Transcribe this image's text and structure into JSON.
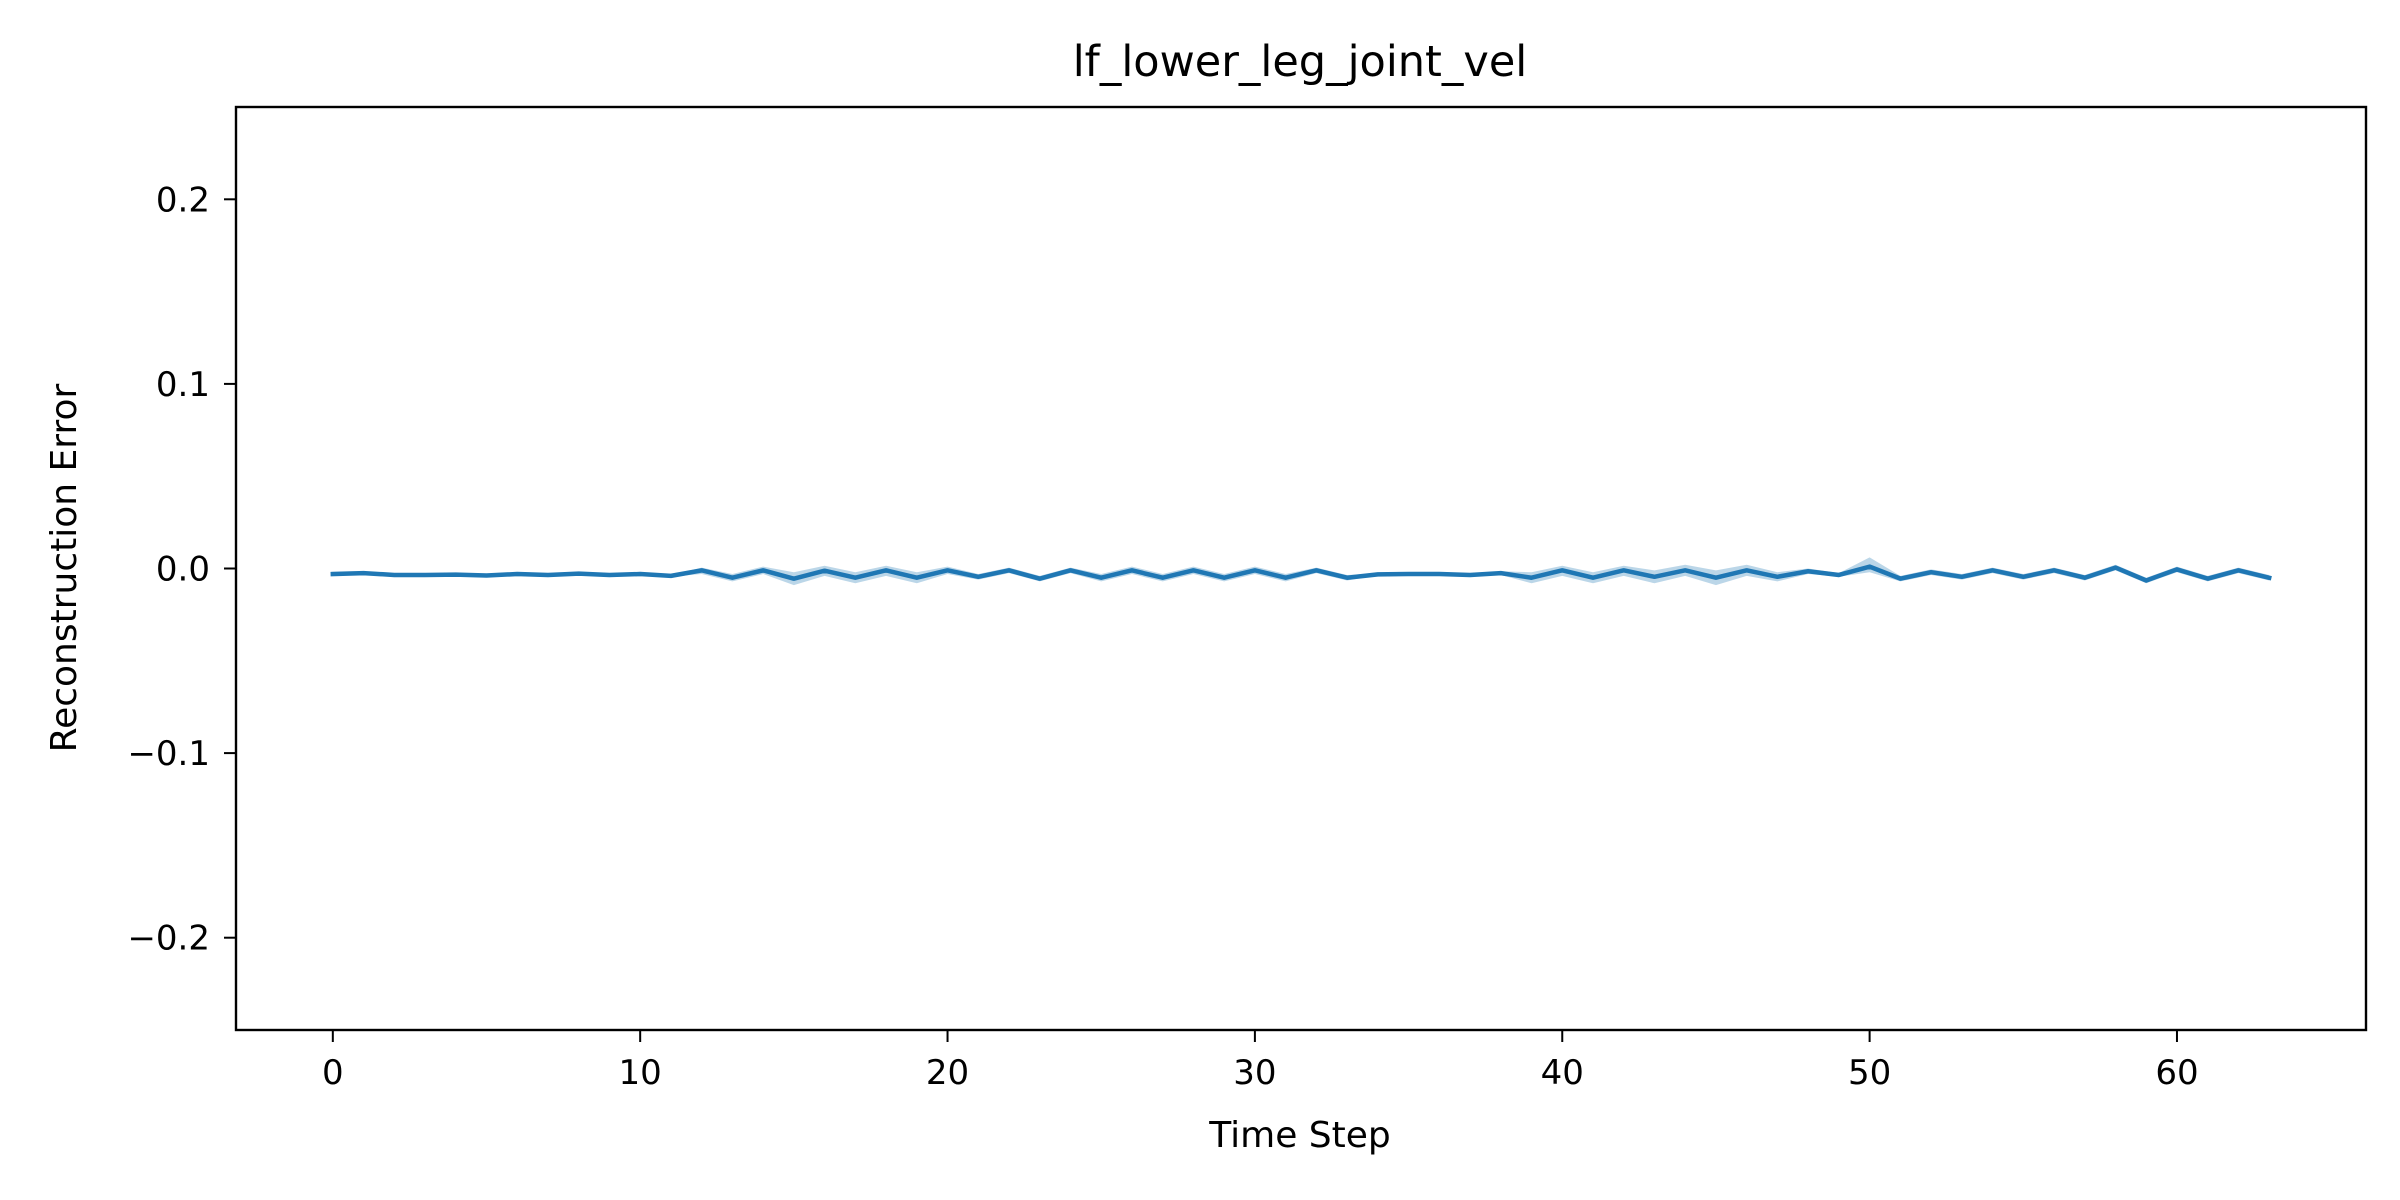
{
  "chart_data": {
    "type": "line",
    "title": "lf_lower_leg_joint_vel",
    "xlabel": "Time Step",
    "ylabel": "Reconstruction Error",
    "xlim": [
      -3.15,
      66.15
    ],
    "ylim": [
      -0.25,
      0.25
    ],
    "xticks": [
      0,
      10,
      20,
      30,
      40,
      50,
      60
    ],
    "xtick_labels": [
      "0",
      "10",
      "20",
      "30",
      "40",
      "50",
      "60"
    ],
    "yticks": [
      0.2,
      0.1,
      0.0,
      -0.1,
      -0.2
    ],
    "ytick_labels": [
      "0.2",
      "0.1",
      "0.0",
      "−0.1",
      "−0.2"
    ],
    "grid": false,
    "legend": "none",
    "series": [
      {
        "color": "#1f77b4",
        "band_color": "#1f77b4",
        "x": [
          0,
          1,
          2,
          3,
          4,
          5,
          6,
          7,
          8,
          9,
          10,
          11,
          12,
          13,
          14,
          15,
          16,
          17,
          18,
          19,
          20,
          21,
          22,
          23,
          24,
          25,
          26,
          27,
          28,
          29,
          30,
          31,
          32,
          33,
          34,
          35,
          36,
          37,
          38,
          39,
          40,
          41,
          42,
          43,
          44,
          45,
          46,
          47,
          48,
          49,
          50,
          51,
          52,
          53,
          54,
          55,
          56,
          57,
          58,
          59,
          60,
          61,
          62,
          63
        ],
        "y": [
          -0.003,
          -0.0025,
          -0.0035,
          -0.0035,
          -0.0033,
          -0.0038,
          -0.003,
          -0.0035,
          -0.0028,
          -0.0035,
          -0.003,
          -0.004,
          -0.001,
          -0.005,
          -0.001,
          -0.0055,
          -0.0012,
          -0.005,
          -0.001,
          -0.005,
          -0.001,
          -0.0045,
          -0.001,
          -0.0055,
          -0.001,
          -0.005,
          -0.001,
          -0.005,
          -0.001,
          -0.005,
          -0.001,
          -0.005,
          -0.001,
          -0.005,
          -0.0032,
          -0.003,
          -0.003,
          -0.0035,
          -0.0025,
          -0.005,
          -0.001,
          -0.005,
          -0.001,
          -0.0045,
          -0.001,
          -0.005,
          -0.001,
          -0.0045,
          -0.0015,
          -0.0035,
          0.001,
          -0.0055,
          -0.002,
          -0.0045,
          -0.001,
          -0.0045,
          -0.001,
          -0.005,
          0.0005,
          -0.0065,
          -0.0005,
          -0.0055,
          -0.001,
          -0.005
        ],
        "y_lower": [
          -0.0035,
          -0.003,
          -0.004,
          -0.004,
          -0.0038,
          -0.0043,
          -0.0035,
          -0.004,
          -0.0033,
          -0.004,
          -0.0035,
          -0.0045,
          -0.003,
          -0.007,
          -0.003,
          -0.009,
          -0.004,
          -0.008,
          -0.004,
          -0.008,
          -0.003,
          -0.006,
          -0.0025,
          -0.007,
          -0.0025,
          -0.007,
          -0.003,
          -0.007,
          -0.003,
          -0.007,
          -0.003,
          -0.007,
          -0.0025,
          -0.0065,
          -0.0037,
          -0.0035,
          -0.0035,
          -0.004,
          -0.0035,
          -0.008,
          -0.004,
          -0.008,
          -0.004,
          -0.008,
          -0.004,
          -0.009,
          -0.004,
          -0.007,
          -0.003,
          -0.0045,
          -0.002,
          -0.007,
          -0.0035,
          -0.006,
          -0.0025,
          -0.006,
          -0.0025,
          -0.0065,
          -0.001,
          -0.008,
          -0.002,
          -0.007,
          -0.0025,
          -0.0065
        ],
        "y_upper": [
          -0.0025,
          -0.002,
          -0.003,
          -0.003,
          -0.0028,
          -0.0033,
          -0.0025,
          -0.003,
          -0.0023,
          -0.003,
          -0.0025,
          -0.0035,
          0.0005,
          -0.003,
          0.001,
          -0.002,
          0.0015,
          -0.002,
          0.0015,
          -0.002,
          0.001,
          -0.003,
          0.0005,
          -0.004,
          0.0005,
          -0.003,
          0.001,
          -0.003,
          0.001,
          -0.003,
          0.001,
          -0.003,
          0.0005,
          -0.0035,
          -0.0027,
          -0.0025,
          -0.0025,
          -0.003,
          -0.0015,
          -0.002,
          0.0015,
          -0.002,
          0.0015,
          -0.001,
          0.002,
          -0.001,
          0.002,
          -0.002,
          0.0,
          -0.0025,
          0.006,
          -0.004,
          -0.0005,
          -0.003,
          0.0005,
          -0.003,
          0.0005,
          -0.0035,
          0.002,
          -0.005,
          0.001,
          -0.004,
          0.0005,
          -0.0035
        ]
      }
    ]
  }
}
